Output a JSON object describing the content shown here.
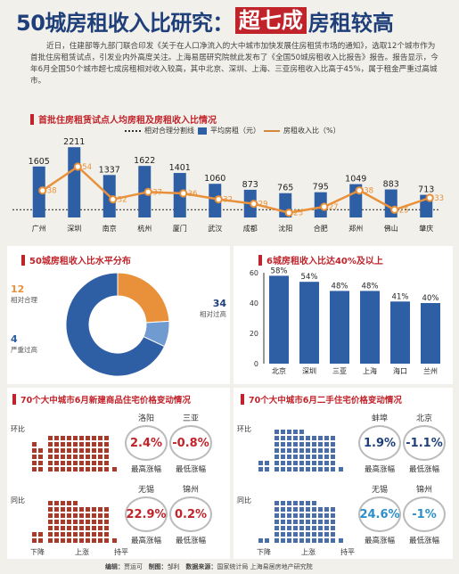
{
  "title": {
    "part1": "50城房租收入比研究：",
    "part2": "超七成",
    "part3": "房租较高"
  },
  "intro": "近日，住建部等九部门联合印发《关于在人口净流入的大中城市加快发展住房租赁市场的通知》，选取12个城市作为首批住房租赁试点，引发业内外高度关注。上海易居研究院就此发布了《全国50城房租收入比报告》报告。报告显示，今年6月全国50个城市超七成房租相对收入较高，其中北京、深圳、上海、三亚房租收入比高于45%，属于租金严重过高城市。",
  "section1": {
    "title": "首批住房租赁试点人均房租及房租收入比情况",
    "legend": [
      "相对合理分割线",
      "平均房租（元）",
      "房租收入比（%）"
    ]
  },
  "section2": {
    "title": "50城房租收入比水平分布"
  },
  "section3": {
    "title": "6城房租收入比达40%及以上"
  },
  "section4": {
    "title": "70个大中城市6月新建商品住宅价格变动情况"
  },
  "section5": {
    "title": "70个大中城市6月二手住宅价格变动情况"
  },
  "colors": {
    "blue": "#2e5fa5",
    "orange": "#e8913a",
    "red": "#c0232a",
    "navy": "#1f3f7a",
    "lightblue": "#6f9bd1"
  },
  "chart_data": [
    {
      "type": "bar",
      "categories": [
        "广州",
        "深圳",
        "南京",
        "杭州",
        "厦门",
        "武汉",
        "成都",
        "沈阳",
        "合肥",
        "郑州",
        "佛山",
        "肇庆"
      ],
      "series": [
        {
          "name": "平均房租（元）",
          "values": [
            1605,
            2211,
            1337,
            1622,
            1401,
            1060,
            873,
            765,
            795,
            1049,
            883,
            713
          ]
        },
        {
          "name": "房租收入比（%）",
          "values": [
            38,
            54,
            32,
            37,
            36,
            32,
            29,
            23,
            27,
            38,
            25,
            33
          ]
        }
      ]
    },
    {
      "type": "pie",
      "labels": [
        "相对合理",
        "严重过高",
        "相对过高"
      ],
      "values": [
        12,
        4,
        34
      ]
    },
    {
      "type": "bar",
      "categories": [
        "北京",
        "深圳",
        "三亚",
        "上海",
        "海口",
        "兰州"
      ],
      "values": [
        58,
        54,
        48,
        48,
        41,
        40
      ],
      "value_labels": [
        "58%",
        "54%",
        "48%",
        "48%",
        "41%",
        "40%"
      ],
      "ylim": [
        0,
        60
      ],
      "yticks": [
        0,
        20,
        40,
        60
      ]
    }
  ],
  "price_new": {
    "row_labels": [
      "环比",
      "同比"
    ],
    "x_labels": [
      "下降",
      "上涨",
      "持平"
    ],
    "huanbi": {
      "down": 9,
      "up": 60,
      "flat": 1
    },
    "tongbi": {
      "down": 4,
      "up": 65,
      "flat": 1
    },
    "stats": [
      {
        "city": "洛阳",
        "value": "2.4%",
        "caption": "最高涨幅"
      },
      {
        "city": "三亚",
        "value": "-0.8%",
        "caption": "最低涨幅"
      },
      {
        "city": "无锡",
        "value": "22.9%",
        "caption": "最高涨幅"
      },
      {
        "city": "锦州",
        "value": "0.2%",
        "caption": "最低涨幅"
      }
    ]
  },
  "price_second": {
    "row_labels": [
      "环比",
      "同比"
    ],
    "x_labels": [
      "下降",
      "上涨",
      "持平"
    ],
    "huanbi": {
      "down": 4,
      "up": 65,
      "flat": 1
    },
    "tongbi": {
      "down": 2,
      "up": 67,
      "flat": 1
    },
    "stats": [
      {
        "city": "蚌埠",
        "value": "1.9%",
        "caption": "最高涨幅"
      },
      {
        "city": "北京",
        "value": "-1.1%",
        "caption": "最低涨幅"
      },
      {
        "city": "无锡",
        "value": "24.6%",
        "caption": "最高涨幅"
      },
      {
        "city": "锦州",
        "value": "-1%",
        "caption": "最低涨幅"
      }
    ]
  },
  "footer": {
    "editor_label": "编辑：",
    "editor": "贾运可",
    "maker_label": "制图：",
    "maker": "邹利",
    "source_label": "数据来源：",
    "source": "国家统计局 上海易居房地产研究院"
  }
}
